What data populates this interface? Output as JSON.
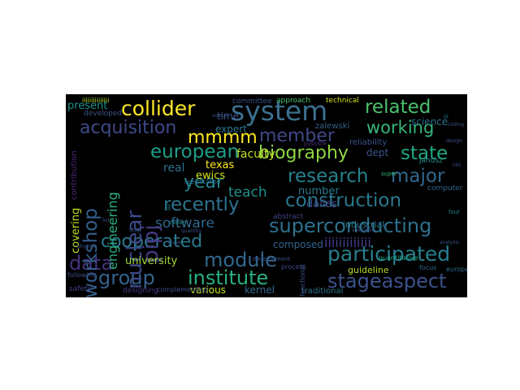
{
  "words": [
    {
      "text": "system",
      "color": "#3b6f8e"
    },
    {
      "text": "collider",
      "color": "#fde725"
    },
    {
      "text": "related",
      "color": "#4ac16d"
    },
    {
      "text": "acquisition",
      "color": "#3e4a89"
    },
    {
      "text": "working",
      "color": "#35b779"
    },
    {
      "text": "biography",
      "color": "#90d743"
    },
    {
      "text": "state",
      "color": "#22a884"
    },
    {
      "text": "member",
      "color": "#3f4788"
    },
    {
      "text": "european",
      "color": "#1f9e89"
    },
    {
      "text": "mmmm",
      "color": "#fde725"
    },
    {
      "text": "research",
      "color": "#26828e"
    },
    {
      "text": "major",
      "color": "#31688e"
    },
    {
      "text": "construction",
      "color": "#2a788e"
    },
    {
      "text": "superconducting",
      "color": "#2d708e"
    },
    {
      "text": "participated",
      "color": "#277f8e"
    },
    {
      "text": "stageaspect",
      "color": "#3b528b"
    },
    {
      "text": "module",
      "color": "#31688e"
    },
    {
      "text": "institute",
      "color": "#29af7f"
    },
    {
      "text": "group",
      "color": "#34618d"
    },
    {
      "text": "data",
      "color": "#46327e"
    },
    {
      "text": "cooperated",
      "color": "#2a788e"
    },
    {
      "text": "software",
      "color": "#31688e"
    },
    {
      "text": "recently",
      "color": "#2c728e"
    },
    {
      "text": "year",
      "color": "#25848e"
    },
    {
      "text": "teach",
      "color": "#21918c"
    },
    {
      "text": "nuclear",
      "color": "#3e4989"
    },
    {
      "text": "pipj",
      "color": "#443983"
    },
    {
      "text": "workshop",
      "color": "#355f8d"
    },
    {
      "text": "engineering",
      "color": "#29af7f"
    },
    {
      "text": "covering",
      "color": "#bddf26"
    },
    {
      "text": "contribution",
      "color": "#482878"
    },
    {
      "text": "iiiiiiiiiiiii",
      "color": "#433e85"
    },
    {
      "text": "present",
      "color": "#21918c"
    },
    {
      "text": "expert",
      "color": "#2a788e"
    },
    {
      "text": "time",
      "color": "#3b528b"
    },
    {
      "text": "real",
      "color": "#2c728e"
    },
    {
      "text": "texas",
      "color": "#fde725"
    },
    {
      "text": "faculty",
      "color": "#c2df23"
    },
    {
      "text": "dept",
      "color": "#3b528b"
    },
    {
      "text": "science",
      "color": "#2c728e"
    },
    {
      "text": "zalewski",
      "color": "#35608d"
    },
    {
      "text": "reliability",
      "color": "#3a548c"
    },
    {
      "text": "ewics",
      "color": "#d0e11c"
    },
    {
      "text": "number",
      "color": "#2a788e"
    },
    {
      "text": "dallas",
      "color": "#404688"
    },
    {
      "text": "industrial",
      "color": "#2a788e"
    },
    {
      "text": "university",
      "color": "#a2da37"
    },
    {
      "text": "composed",
      "color": "#33638d"
    },
    {
      "text": "various",
      "color": "#c8e020"
    },
    {
      "text": "kernel",
      "color": "#2f6b8e"
    },
    {
      "text": "guideline",
      "color": "#b5de2b"
    },
    {
      "text": "traditional",
      "color": "#2a778e"
    },
    {
      "text": "committee",
      "color": "#3b528b"
    },
    {
      "text": "approach",
      "color": "#4ac16d"
    },
    {
      "text": "technical",
      "color": "#d5e21a"
    },
    {
      "text": "janusz",
      "color": "#21918c"
    },
    {
      "text": "computer",
      "color": "#31688e"
    },
    {
      "text": "abstract",
      "color": "#414487"
    },
    {
      "text": "developed",
      "color": "#3b528b"
    },
    {
      "text": "designing",
      "color": "#443a83"
    },
    {
      "text": "complementing",
      "color": "#3b528b"
    },
    {
      "text": "safety",
      "color": "#424086"
    },
    {
      "text": "following",
      "color": "#3d4e8a"
    },
    {
      "text": "process",
      "color": "#3e4989"
    },
    {
      "text": "functional",
      "color": "#3b528b"
    },
    {
      "text": "quantitative",
      "color": "#22a785"
    },
    {
      "text": "focus",
      "color": "#31688e"
    },
    {
      "text": "europe",
      "color": "#2e6e8e"
    },
    {
      "text": "four",
      "color": "#238a8d"
    },
    {
      "text": "mean",
      "color": "#21918c"
    },
    {
      "text": "specification",
      "color": "#2c728e"
    },
    {
      "text": "possible",
      "color": "#472c7a"
    },
    {
      "text": "development",
      "color": "#3b528b"
    },
    {
      "text": "super",
      "color": "#35b779"
    },
    {
      "text": "coding",
      "color": "#3b528b"
    },
    {
      "text": "design",
      "color": "#3b528b"
    },
    {
      "text": "iiii",
      "color": "#26828e"
    },
    {
      "text": "iiiiiiiiiiiiiii",
      "color": "#b5de2b"
    },
    {
      "text": "iii",
      "color": "#2a788e"
    },
    {
      "text": "step",
      "color": "#3b528b"
    },
    {
      "text": "lui",
      "color": "#3b528b"
    },
    {
      "text": "overall",
      "color": "#3b528b"
    },
    {
      "text": "iiiiii",
      "color": "#3b528b"
    },
    {
      "text": "physics",
      "color": "#3b528b"
    },
    {
      "text": "stage",
      "color": "#3b528b"
    },
    {
      "text": "quantity",
      "color": "#3b528b"
    },
    {
      "text": "validation",
      "color": "#3b528b"
    },
    {
      "text": "analysis",
      "color": "#3b528b"
    }
  ]
}
